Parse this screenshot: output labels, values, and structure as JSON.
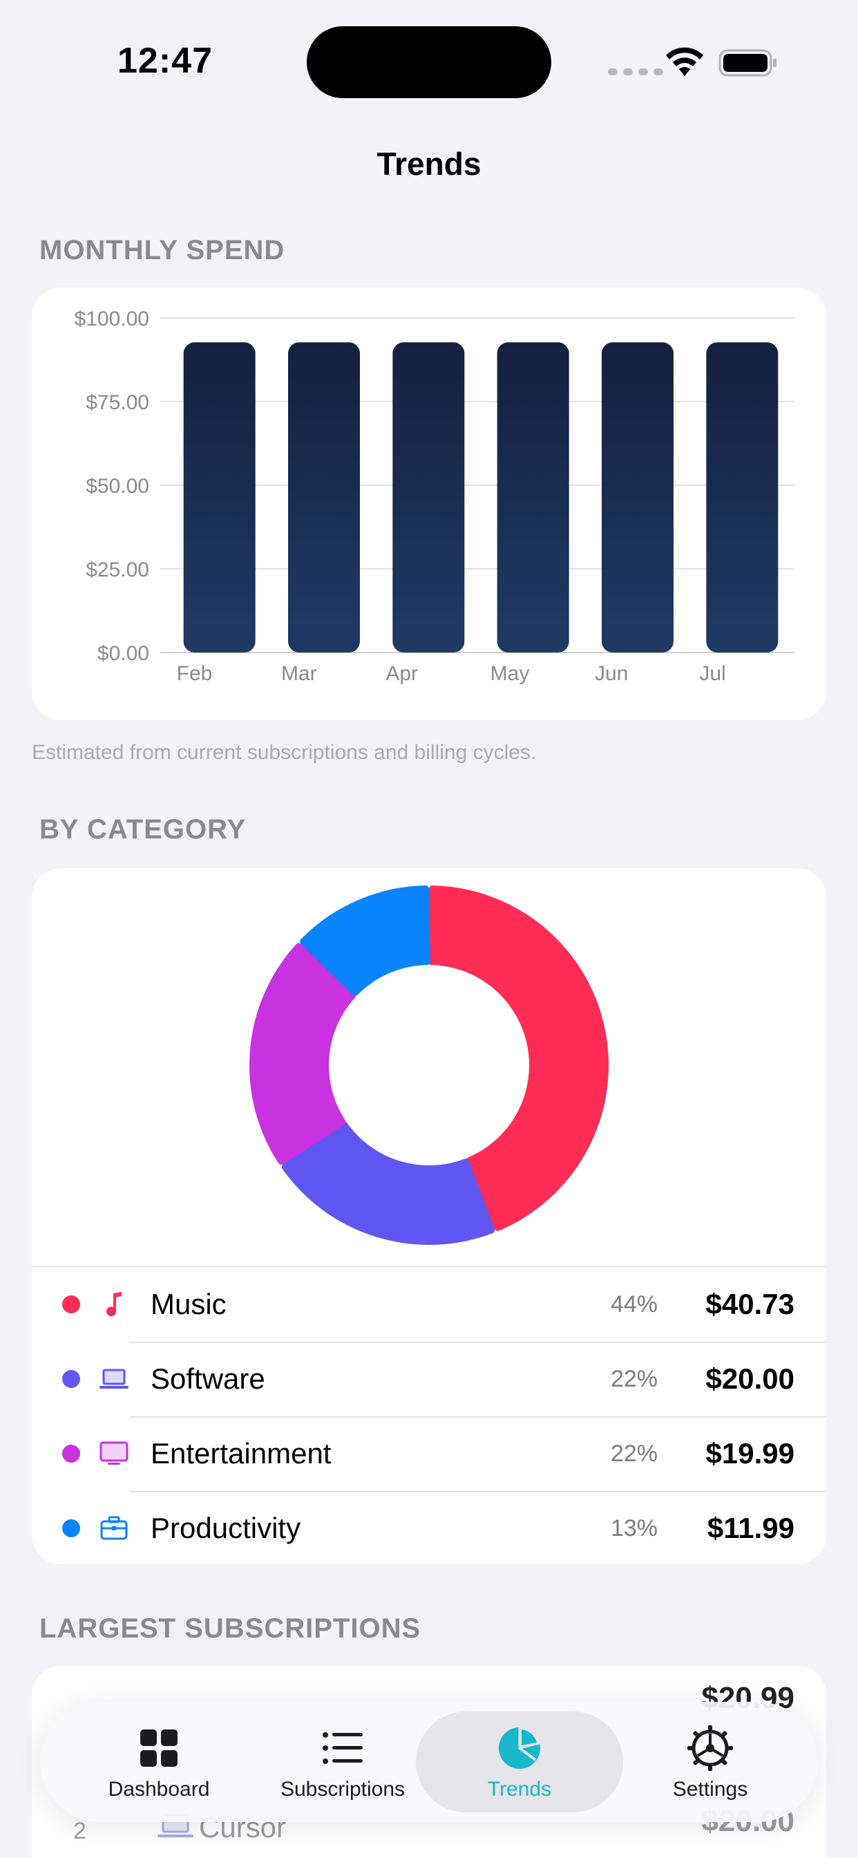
{
  "status_bar": {
    "time": "12:47"
  },
  "nav": {
    "title": "Trends"
  },
  "monthly_spend": {
    "header": "MONTHLY SPEND",
    "footnote": "Estimated from current subscriptions and billing cycles."
  },
  "chart_data": {
    "type": "bar",
    "categories": [
      "Feb",
      "Mar",
      "Apr",
      "May",
      "Jun",
      "Jul"
    ],
    "values": [
      92.71,
      92.71,
      92.71,
      92.71,
      92.71,
      92.71
    ],
    "ylim": [
      0,
      100
    ],
    "yticks": [
      "$0.00",
      "$25.00",
      "$50.00",
      "$75.00",
      "$100.00"
    ],
    "ytick_values": [
      0,
      25,
      50,
      75,
      100
    ],
    "grid": true,
    "bar_color_top": "#14203f",
    "bar_color_bottom": "#1f3a63"
  },
  "by_category": {
    "header": "BY CATEGORY",
    "items": [
      {
        "name": "Music",
        "pct": "44%",
        "amount": "$40.73",
        "value": 40.73,
        "color": "#ff2d55",
        "icon": "music-note-icon"
      },
      {
        "name": "Software",
        "pct": "22%",
        "amount": "$20.00",
        "value": 20.0,
        "color": "#6057f3",
        "icon": "laptop-icon"
      },
      {
        "name": "Entertainment",
        "pct": "22%",
        "amount": "$19.99",
        "value": 19.99,
        "color": "#c832e0",
        "icon": "tv-icon"
      },
      {
        "name": "Productivity",
        "pct": "13%",
        "amount": "$11.99",
        "value": 11.99,
        "color": "#0a84ff",
        "icon": "briefcase-icon"
      }
    ]
  },
  "largest": {
    "header": "LARGEST SUBSCRIPTIONS",
    "rows": [
      {
        "amount": "$20.99"
      },
      {
        "rank": "2",
        "name": "Cursor",
        "amount": "$20.00"
      }
    ]
  },
  "tab_bar": {
    "tabs": [
      {
        "label": "Dashboard",
        "icon": "grid-icon"
      },
      {
        "label": "Subscriptions",
        "icon": "list-icon"
      },
      {
        "label": "Trends",
        "icon": "pie-chart-icon",
        "active": true
      },
      {
        "label": "Settings",
        "icon": "gear-icon"
      }
    ],
    "accent": "#18b7c9"
  }
}
